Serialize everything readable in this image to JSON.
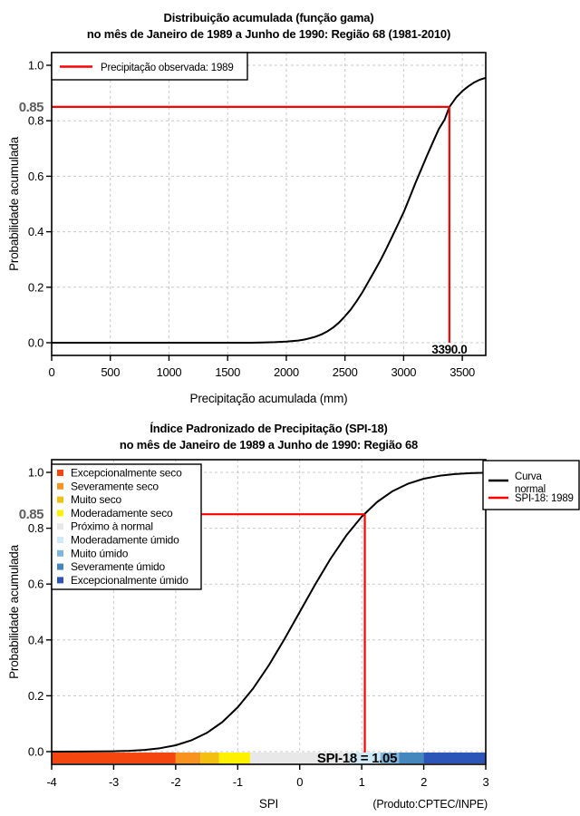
{
  "page": {
    "background": "#FFFFFF"
  },
  "colors": {
    "reference_line": "#FF0000",
    "curve": "#000000",
    "grid": "#C8C8C8",
    "highlight_tick_label": "#5E5E5E"
  },
  "chart_data": [
    {
      "type": "line",
      "title": "Distribuição acumulada (função gama)",
      "subtitle": "no mês de Janeiro de 1989 a Junho de 1990: Região 68 (1981-2010)",
      "xlabel": "Precipitação acumulada (mm)",
      "ylabel": "Probabilidade acumulada",
      "xlim": [
        0,
        3700
      ],
      "ylim": [
        0.0,
        1.0
      ],
      "grid": true,
      "x_tick_values": [
        0,
        500,
        1000,
        1500,
        2000,
        2500,
        3000,
        3500
      ],
      "x_ticks": [
        "0",
        "500",
        "1000",
        "1500",
        "2000",
        "2500",
        "3000",
        "3500"
      ],
      "y_tick_values": [
        0.0,
        0.2,
        0.4,
        0.6,
        0.8,
        1.0
      ],
      "y_ticks": [
        "0.0",
        "0.2",
        "0.4",
        "0.6",
        "0.8",
        "1.0"
      ],
      "highlight": {
        "y_value": 0.85,
        "y_label": "0.85",
        "x_value": 3390,
        "x_label": "3390.0"
      },
      "legend": {
        "position": "top-left",
        "entries": [
          {
            "label": "Precipitação observada: 1989",
            "color": "#FF0000"
          }
        ]
      },
      "series": [
        {
          "name": "Distribuição gama acumulada",
          "color": "#000000",
          "points": [
            [
              0,
              0
            ],
            [
              200,
              0
            ],
            [
              400,
              0
            ],
            [
              600,
              0
            ],
            [
              800,
              0
            ],
            [
              1000,
              0
            ],
            [
              1200,
              0
            ],
            [
              1400,
              0
            ],
            [
              1600,
              0
            ],
            [
              1700,
              0
            ],
            [
              1800,
              0.001
            ],
            [
              1900,
              0.002
            ],
            [
              2000,
              0.004
            ],
            [
              2100,
              0.008
            ],
            [
              2150,
              0.011
            ],
            [
              2200,
              0.016
            ],
            [
              2250,
              0.022
            ],
            [
              2300,
              0.03
            ],
            [
              2350,
              0.041
            ],
            [
              2400,
              0.055
            ],
            [
              2450,
              0.073
            ],
            [
              2500,
              0.095
            ],
            [
              2550,
              0.12
            ],
            [
              2600,
              0.15
            ],
            [
              2650,
              0.183
            ],
            [
              2700,
              0.22
            ],
            [
              2750,
              0.257
            ],
            [
              2800,
              0.295
            ],
            [
              2850,
              0.337
            ],
            [
              2900,
              0.38
            ],
            [
              2950,
              0.425
            ],
            [
              3000,
              0.47
            ],
            [
              3050,
              0.522
            ],
            [
              3100,
              0.575
            ],
            [
              3150,
              0.625
            ],
            [
              3200,
              0.675
            ],
            [
              3250,
              0.723
            ],
            [
              3300,
              0.77
            ],
            [
              3350,
              0.805
            ],
            [
              3390,
              0.85
            ],
            [
              3450,
              0.885
            ],
            [
              3500,
              0.907
            ],
            [
              3550,
              0.924
            ],
            [
              3600,
              0.938
            ],
            [
              3650,
              0.948
            ],
            [
              3700,
              0.955
            ]
          ]
        }
      ]
    },
    {
      "type": "line",
      "title": "Índice Padronizado de Precipitação (SPI-18)",
      "subtitle": "no mês de Janeiro de 1989 a Junho de 1990: Região 68",
      "xlabel": "SPI",
      "ylabel": "Probabilidade acumulada",
      "footnote": "(Produto:CPTEC/INPE)",
      "xlim": [
        -4,
        3
      ],
      "ylim": [
        0.0,
        1.0
      ],
      "grid": true,
      "x_tick_values": [
        -4,
        -3,
        -2,
        -1,
        0,
        1,
        2,
        3
      ],
      "x_ticks": [
        "-4",
        "-3",
        "-2",
        "-1",
        "0",
        "1",
        "2",
        "3"
      ],
      "y_tick_values": [
        0.0,
        0.2,
        0.4,
        0.6,
        0.8,
        1.0
      ],
      "y_ticks": [
        "0.0",
        "0.2",
        "0.4",
        "0.6",
        "0.8",
        "1.0"
      ],
      "highlight": {
        "y_value": 0.85,
        "y_label": "0.85",
        "x_value": 1.05,
        "x_label": "SPI-18 = 1.05"
      },
      "category_legend": [
        {
          "label": "Excepcionalmente seco",
          "color": "#F4470F"
        },
        {
          "label": "Severamente seco",
          "color": "#F79420"
        },
        {
          "label": "Muito seco",
          "color": "#F3C011"
        },
        {
          "label": "Moderadamente seco",
          "color": "#FEF200"
        },
        {
          "label": "Próximo à normal",
          "color": "#E8E8E8"
        },
        {
          "label": "Moderadamente úmido",
          "color": "#CEE9F7"
        },
        {
          "label": "Muito úmido",
          "color": "#7EB6DC"
        },
        {
          "label": "Severamente úmido",
          "color": "#4387BD"
        },
        {
          "label": "Excepcionalmente úmido",
          "color": "#2C55B8"
        }
      ],
      "legend": {
        "position": "top-right",
        "entries": [
          {
            "label_lines": [
              "Curva",
              "normal"
            ],
            "color": "#000000"
          },
          {
            "label_lines": [
              "SPI-18: 1989"
            ],
            "color": "#FF0000"
          }
        ]
      },
      "spi_scale_bar": {
        "segments": [
          {
            "from": -4,
            "to": -2,
            "color": "#F4470F",
            "category": "Excepcionalmente seco"
          },
          {
            "from": -2,
            "to": -1.6,
            "color": "#F79420",
            "category": "Severamente seco"
          },
          {
            "from": -1.6,
            "to": -1.3,
            "color": "#F3C011",
            "category": "Muito seco"
          },
          {
            "from": -1.3,
            "to": -0.8,
            "color": "#FEF200",
            "category": "Moderadamente seco"
          },
          {
            "from": -0.8,
            "to": 0.8,
            "color": "#E8E8E8",
            "category": "Próximo à normal"
          },
          {
            "from": 0.8,
            "to": 1.3,
            "color": "#CEE9F7",
            "category": "Moderadamente úmido"
          },
          {
            "from": 1.3,
            "to": 1.6,
            "color": "#7EB6DC",
            "category": "Muito úmido"
          },
          {
            "from": 1.6,
            "to": 2,
            "color": "#4387BD",
            "category": "Severamente úmido"
          },
          {
            "from": 2,
            "to": 3,
            "color": "#2C55B8",
            "category": "Excepcionalmente úmido"
          }
        ]
      },
      "series": [
        {
          "name": "Curva normal",
          "color": "#000000",
          "points": [
            [
              -4,
              0.0
            ],
            [
              -3.5,
              0.0002
            ],
            [
              -3,
              0.0013
            ],
            [
              -2.75,
              0.003
            ],
            [
              -2.5,
              0.0062
            ],
            [
              -2.25,
              0.0122
            ],
            [
              -2,
              0.0228
            ],
            [
              -1.75,
              0.0401
            ],
            [
              -1.5,
              0.0668
            ],
            [
              -1.25,
              0.1056
            ],
            [
              -1,
              0.1587
            ],
            [
              -0.75,
              0.2266
            ],
            [
              -0.5,
              0.3085
            ],
            [
              -0.25,
              0.4013
            ],
            [
              0,
              0.5
            ],
            [
              0.25,
              0.5987
            ],
            [
              0.5,
              0.6915
            ],
            [
              0.75,
              0.7734
            ],
            [
              1,
              0.8413
            ],
            [
              1.25,
              0.8944
            ],
            [
              1.5,
              0.9332
            ],
            [
              1.75,
              0.9599
            ],
            [
              2,
              0.9772
            ],
            [
              2.25,
              0.9878
            ],
            [
              2.5,
              0.9938
            ],
            [
              2.75,
              0.997
            ],
            [
              3,
              0.9987
            ]
          ]
        }
      ]
    }
  ]
}
